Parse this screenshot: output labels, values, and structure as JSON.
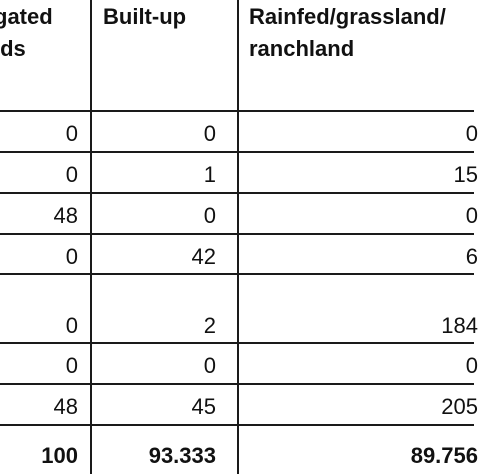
{
  "table": {
    "headers": {
      "col1_line1": "gated",
      "col1_line2": "lds",
      "col2_line1": "Built-up",
      "col3_line1": "Rainfed/grassland/",
      "col3_line2": "ranchland"
    },
    "rows": [
      [
        "0",
        "0",
        "0"
      ],
      [
        "0",
        "1",
        "15"
      ],
      [
        "48",
        "0",
        "0"
      ],
      [
        "0",
        "42",
        "6"
      ],
      [
        "0",
        "2",
        "184"
      ],
      [
        "0",
        "0",
        "0"
      ],
      [
        "48",
        "45",
        "205"
      ],
      [
        "100",
        "93.333",
        "89.756"
      ]
    ]
  }
}
